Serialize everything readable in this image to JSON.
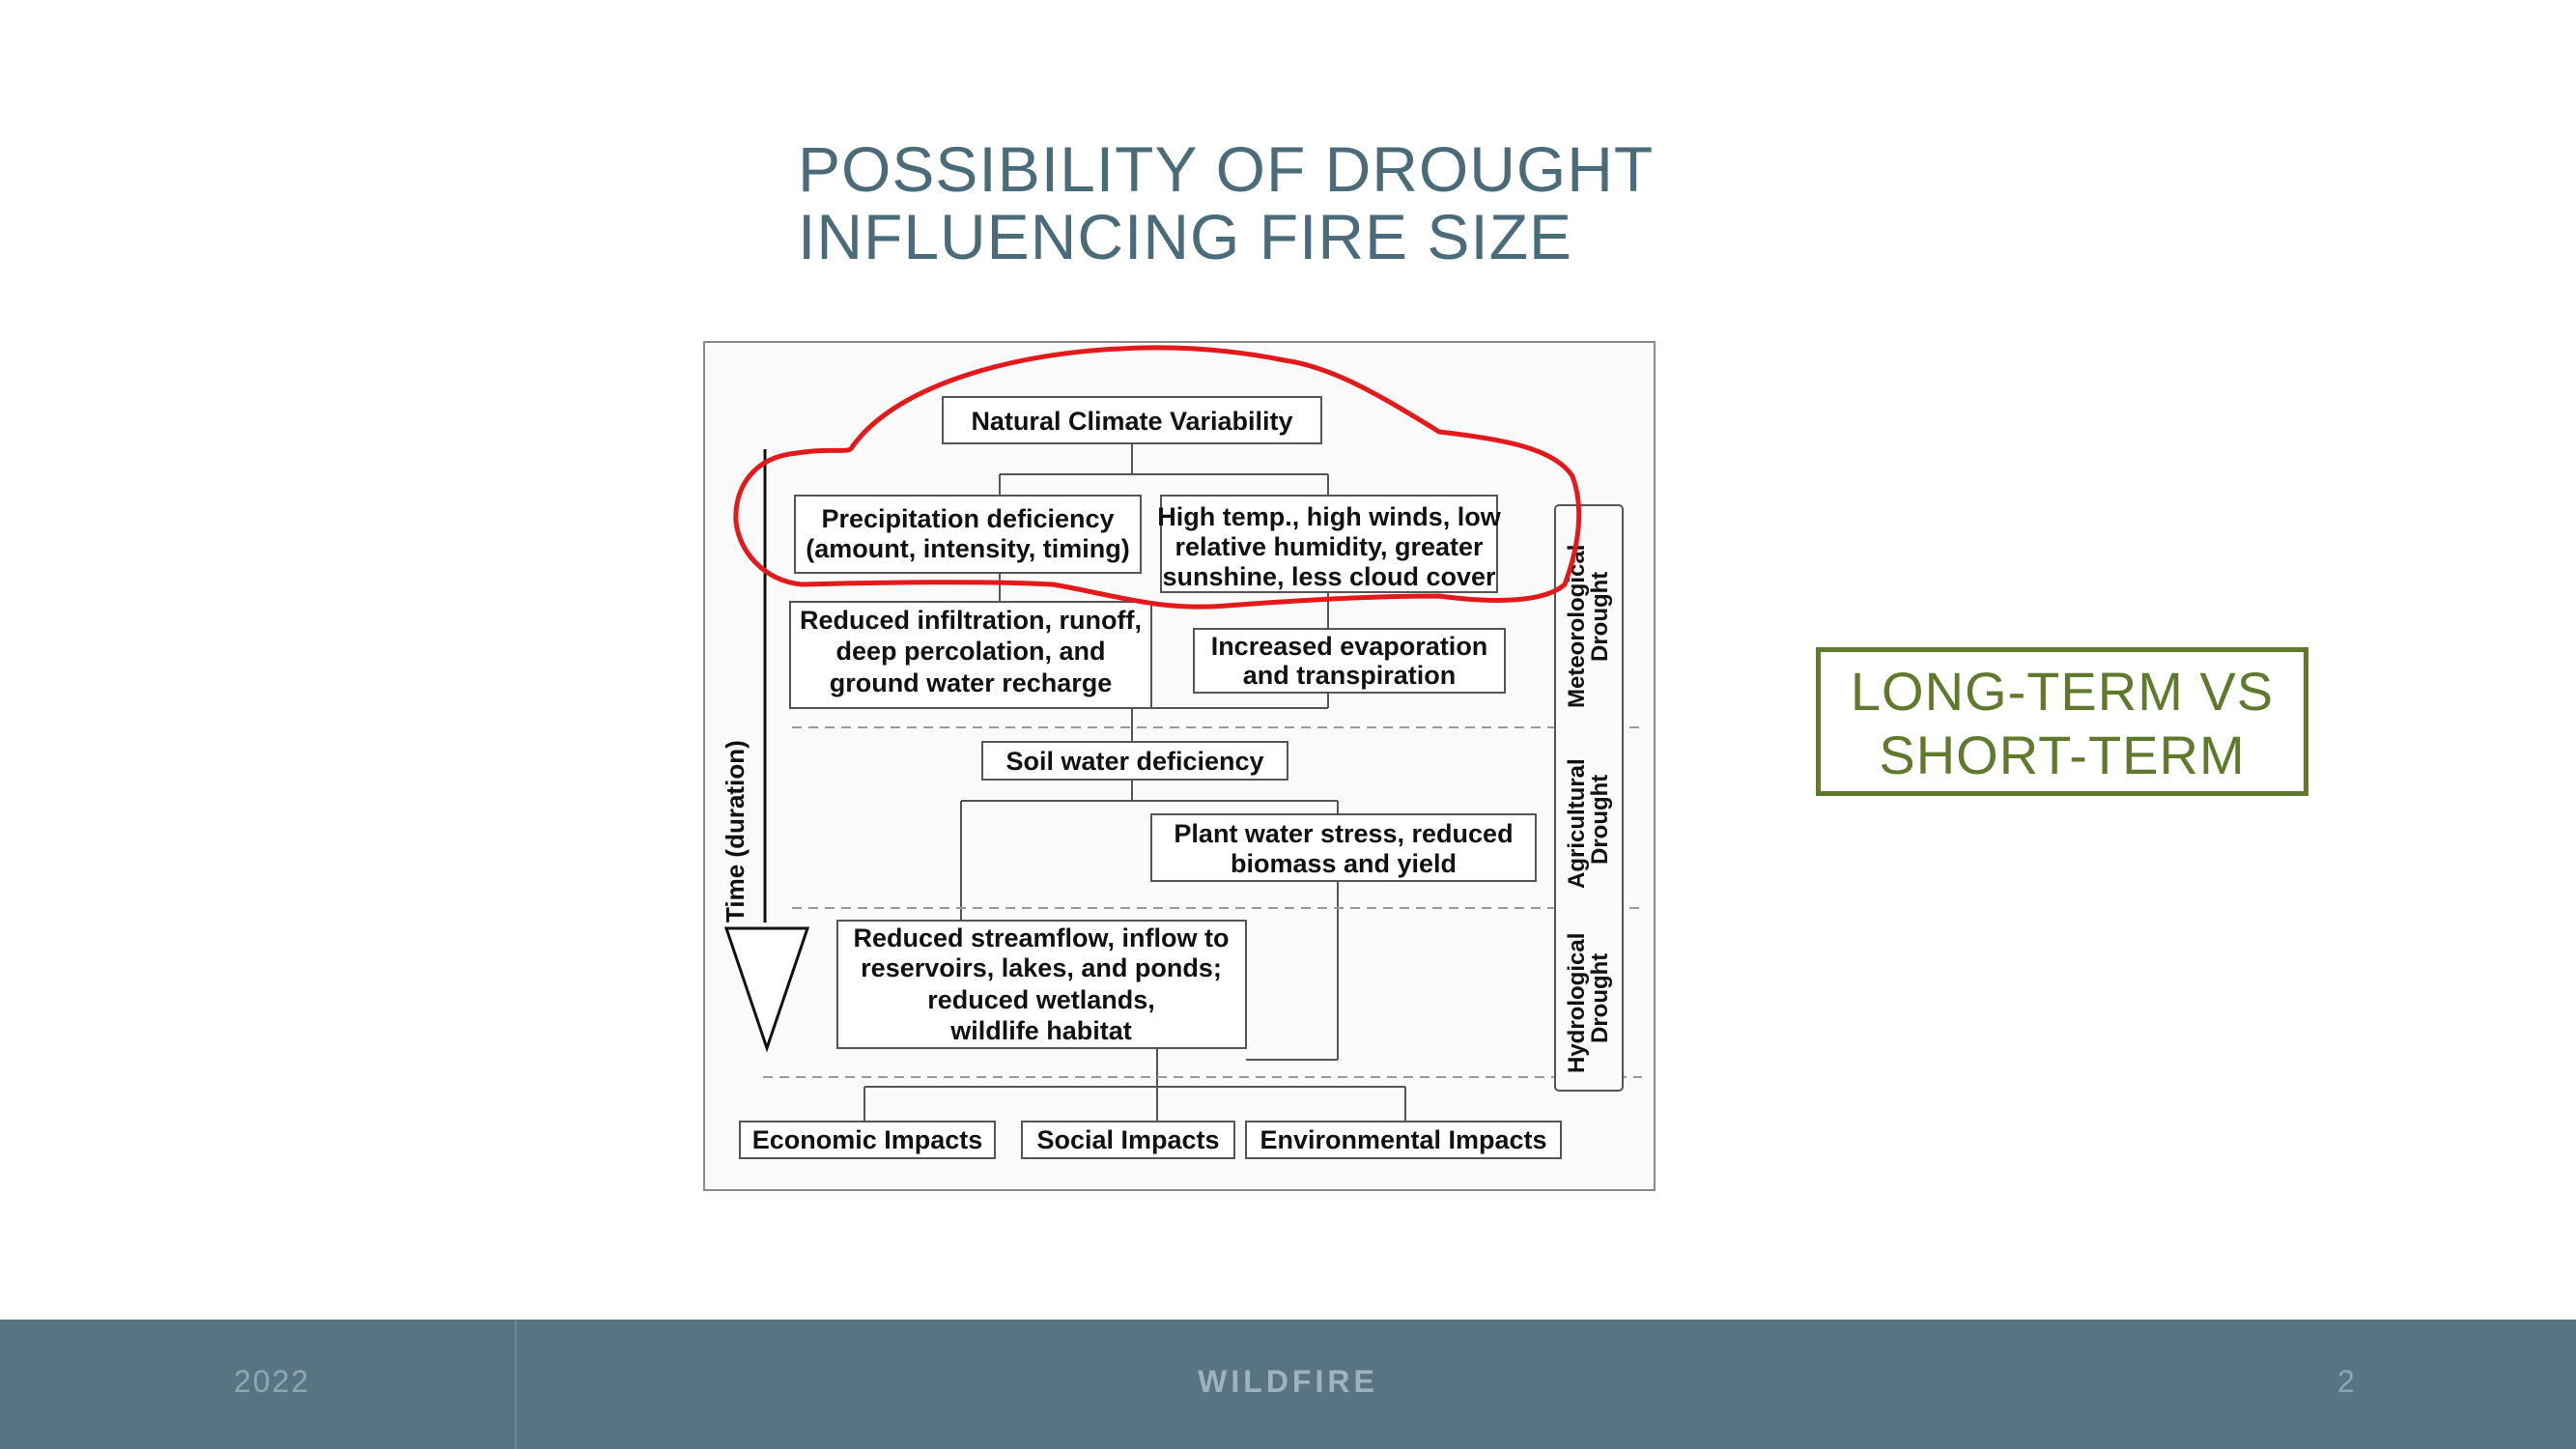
{
  "slide": {
    "title_line1": "POSSIBILITY OF DROUGHT",
    "title_line2": "INFLUENCING FIRE SIZE",
    "callout_line1": "LONG-TERM VS",
    "callout_line2": "SHORT-TERM",
    "accent_color": "#5f7a2c",
    "title_color": "#4a6b7a",
    "highlight_color": "#e3191c"
  },
  "diagram": {
    "natural_climate": "Natural Climate Variability",
    "precip_line1": "Precipitation deficiency",
    "precip_line2": "(amount, intensity, timing)",
    "hightemp_line1": "High temp., high winds, low",
    "hightemp_line2": "relative humidity, greater",
    "hightemp_line3": "sunshine, less cloud cover",
    "infil_line1": "Reduced infiltration, runoff,",
    "infil_line2": "deep percolation, and",
    "infil_line3": "ground water recharge",
    "evap_line1": "Increased evaporation",
    "evap_line2": "and transpiration",
    "soil": "Soil water deficiency",
    "plant_line1": "Plant water stress, reduced",
    "plant_line2": "biomass and yield",
    "stream_line1": "Reduced streamflow, inflow to",
    "stream_line2": "reservoirs, lakes, and ponds;",
    "stream_line3": "reduced wetlands,",
    "stream_line4": "wildlife habitat",
    "economic": "Economic Impacts",
    "social": "Social Impacts",
    "environmental": "Environmental Impacts",
    "time_label": "Time (duration)",
    "meteo_line1": "Meteorological",
    "meteo_line2": "Drought",
    "agri_line1": "Agricultural",
    "agri_line2": "Drought",
    "hydro_line1": "Hydrological",
    "hydro_line2": "Drought"
  },
  "footer": {
    "year": "2022",
    "title": "WILDFIRE",
    "page": "2"
  }
}
